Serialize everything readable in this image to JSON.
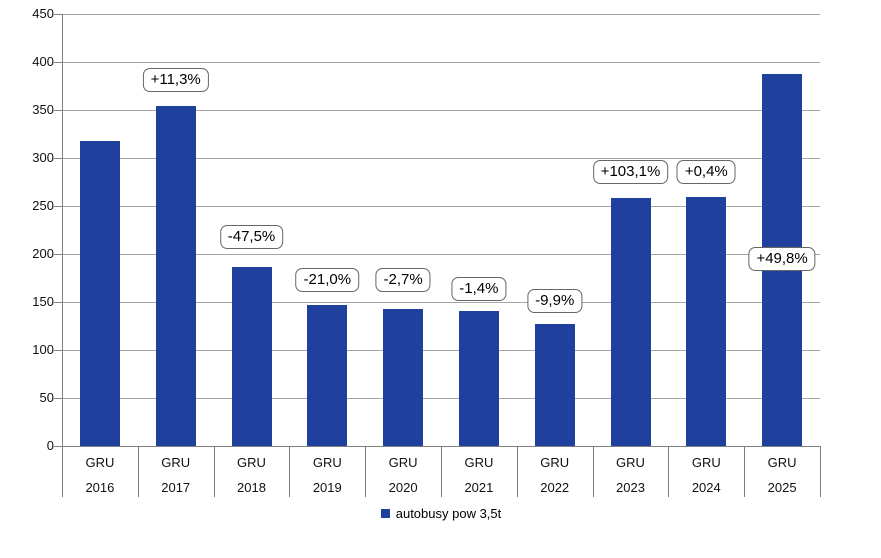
{
  "chart_data": {
    "type": "bar",
    "title": "",
    "xlabel": "",
    "ylabel": "",
    "categories": [
      {
        "month": "GRU",
        "year": "2016"
      },
      {
        "month": "GRU",
        "year": "2017"
      },
      {
        "month": "GRU",
        "year": "2018"
      },
      {
        "month": "GRU",
        "year": "2019"
      },
      {
        "month": "GRU",
        "year": "2020"
      },
      {
        "month": "GRU",
        "year": "2021"
      },
      {
        "month": "GRU",
        "year": "2022"
      },
      {
        "month": "GRU",
        "year": "2023"
      },
      {
        "month": "GRU",
        "year": "2024"
      },
      {
        "month": "GRU",
        "year": "2025"
      }
    ],
    "series": [
      {
        "name": "autobusy pow 3,5t",
        "values": [
          318,
          354,
          186,
          147,
          143,
          141,
          127,
          258,
          259,
          388
        ]
      }
    ],
    "annotations": [
      {
        "index": 1,
        "text": "+11,3%",
        "anchor_value": 381
      },
      {
        "index": 2,
        "text": "-47,5%",
        "anchor_value": 218
      },
      {
        "index": 3,
        "text": "-21,0%",
        "anchor_value": 173
      },
      {
        "index": 4,
        "text": "-2,7%",
        "anchor_value": 173
      },
      {
        "index": 5,
        "text": "-1,4%",
        "anchor_value": 164
      },
      {
        "index": 6,
        "text": "-9,9%",
        "anchor_value": 151
      },
      {
        "index": 7,
        "text": "+103,1%",
        "anchor_value": 285
      },
      {
        "index": 8,
        "text": "+0,4%",
        "anchor_value": 285
      },
      {
        "index": 9,
        "text": "+49,8%",
        "anchor_value": 195
      }
    ],
    "ylim": [
      0,
      450
    ],
    "yticks": [
      0,
      50,
      100,
      150,
      200,
      250,
      300,
      350,
      400,
      450
    ],
    "grid": true,
    "legend": {
      "label": "autobusy pow 3,5t",
      "position": "bottom-center"
    },
    "colors": {
      "bar": "#1f409c",
      "gridline": "#a6a6a6",
      "axis": "#7f7f7f",
      "annotation_border": "#666666",
      "text": "#111111"
    }
  }
}
